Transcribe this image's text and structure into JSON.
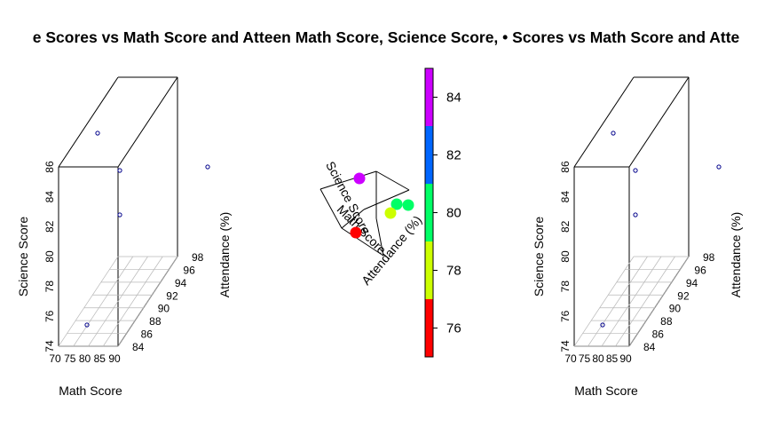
{
  "chart_data": [
    {
      "type": "scatter3d",
      "title": "e Scores vs Math Score and Atteen Math Score, Science Score, • Scores vs Math Score and Atte",
      "xlabel": "Math Score",
      "ylabel": "Science Score",
      "zlabel": "Attendance (%)",
      "x_ticks": [
        "70",
        "75",
        "80",
        "85",
        "90"
      ],
      "y_ticks": [
        "74",
        "76",
        "78",
        "80",
        "82",
        "84",
        "86"
      ],
      "z_ticks": [
        "84",
        "86",
        "88",
        "90",
        "92",
        "94",
        "96",
        "98"
      ],
      "grid": true,
      "point_color": "#00008b"
    },
    {
      "type": "scatter3d",
      "xlabel": "Math Score",
      "ylabel": "Science Score",
      "zlabel": "Attendance (%)",
      "colorbar_ticks": [
        "76",
        "78",
        "80",
        "82",
        "84"
      ],
      "colorbar_range": [
        75,
        85
      ],
      "colorbar_bands": [
        {
          "from": 75,
          "to": 77,
          "color": "#ff0000"
        },
        {
          "from": 77,
          "to": 79,
          "color": "#ccff00"
        },
        {
          "from": 79,
          "to": 81,
          "color": "#00ff66"
        },
        {
          "from": 81,
          "to": 83,
          "color": "#0066ff"
        },
        {
          "from": 83,
          "to": 85,
          "color": "#cc00ff"
        }
      ],
      "points": [
        {
          "color": "#cc00ff"
        },
        {
          "color": "#00ff66"
        },
        {
          "color": "#00ff66"
        },
        {
          "color": "#ccff00"
        },
        {
          "color": "#ff0000"
        }
      ]
    },
    {
      "type": "scatter3d",
      "xlabel": "Math Score",
      "ylabel": "Science Score",
      "zlabel": "Attendance (%)",
      "x_ticks": [
        "70",
        "75",
        "80",
        "85",
        "90"
      ],
      "y_ticks": [
        "74",
        "76",
        "78",
        "80",
        "82",
        "84",
        "86"
      ],
      "z_ticks": [
        "84",
        "86",
        "88",
        "90",
        "92",
        "94",
        "96",
        "98"
      ],
      "grid": true,
      "point_color": "#00008b"
    }
  ]
}
